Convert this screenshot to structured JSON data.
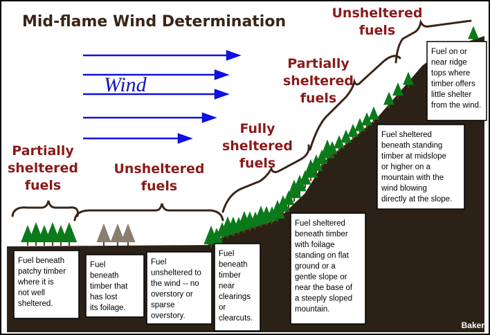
{
  "title": "Mid-flame Wind Determination",
  "wind_label": "Wind",
  "zones": [
    {
      "lines": [
        "Partially",
        "sheltered",
        "fuels"
      ]
    },
    {
      "lines": [
        "Unsheltered",
        "fuels"
      ]
    },
    {
      "lines": [
        "Fully",
        "sheltered",
        "fuels"
      ]
    },
    {
      "lines": [
        "Partially",
        "sheltered",
        "fuels"
      ]
    },
    {
      "lines": [
        "Unsheltered",
        "fuels"
      ]
    }
  ],
  "descriptions": [
    {
      "lines": [
        "Fuel beneath",
        "patchy timber",
        "where it is",
        "not well",
        "sheltered."
      ]
    },
    {
      "lines": [
        "Fuel",
        "beneath",
        "timber that",
        "has lost",
        "its foilage."
      ]
    },
    {
      "lines": [
        "Fuel",
        "unsheltered to",
        "the wind -- no",
        "overstory or",
        "sparse",
        "overstory."
      ]
    },
    {
      "lines": [
        "Fuel",
        "beneath",
        "timber",
        "near",
        "clearings",
        "or",
        "clearcuts."
      ]
    },
    {
      "lines": [
        "Fuel sheltered",
        "beneath  timber",
        "with foilage",
        "standing on flat",
        "ground or a",
        "gentle slope or",
        "near the base of",
        "a steeply sloped",
        "mountain."
      ]
    },
    {
      "lines": [
        "Fuel sheltered",
        "beneath standing",
        "timber at midslope",
        "or higher on a",
        "mountain with the",
        "wind blowing",
        "directly at the slope."
      ]
    },
    {
      "lines": [
        "Fuel on or",
        "near ridge",
        "tops where",
        "timber offers",
        "little shelter",
        "from the wind."
      ]
    }
  ],
  "credit": "Baker"
}
